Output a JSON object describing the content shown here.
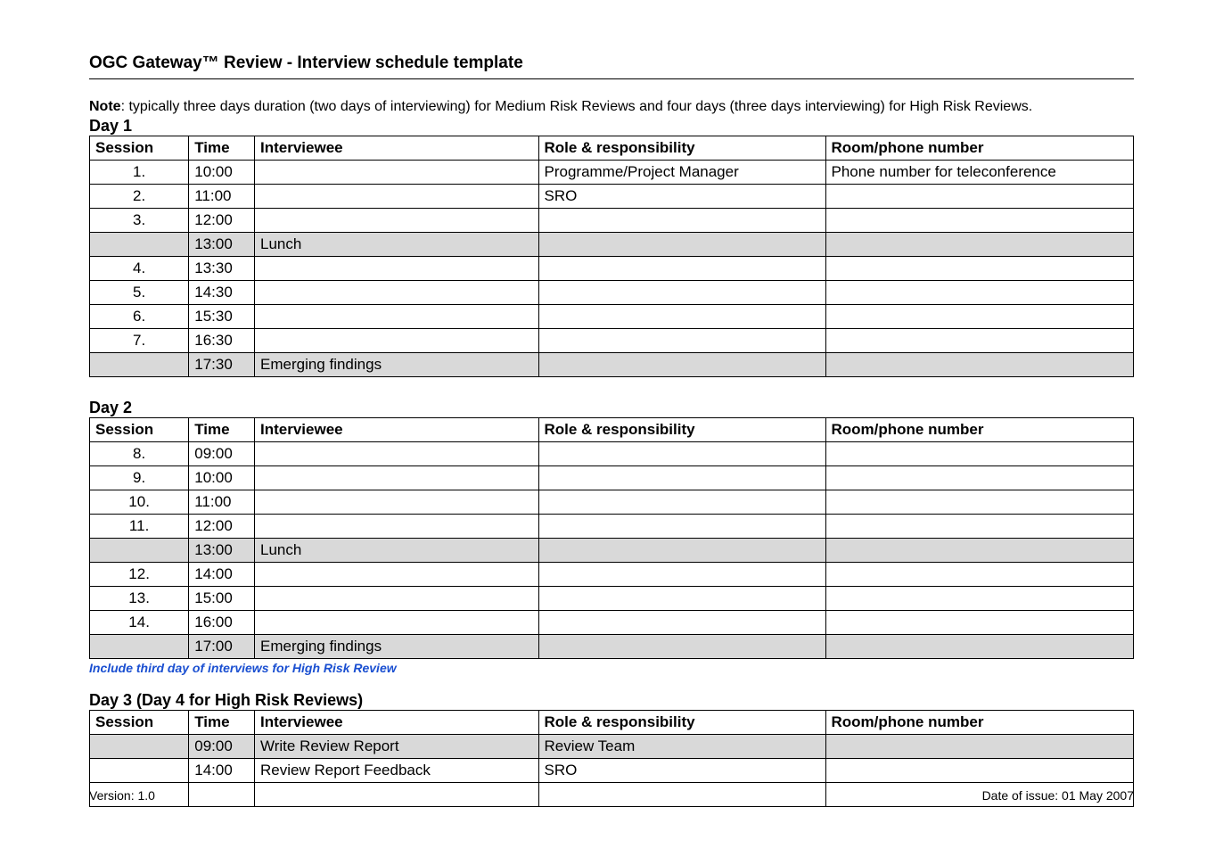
{
  "title": "OGC Gateway™ Review - Interview schedule template",
  "note_label": "Note",
  "note_text": ": typically three days duration (two days of interviewing) for Medium Risk Reviews and four days (three days interviewing) for High Risk Reviews.",
  "columns": {
    "session": "Session",
    "time": "Time",
    "interviewee": "Interviewee",
    "role": "Role & responsibility",
    "room": "Room/phone number"
  },
  "day1": {
    "heading": "Day 1",
    "rows": [
      {
        "session": "1.",
        "time": "10:00",
        "interviewee": "",
        "role": "Programme/Project Manager",
        "room": "Phone number for teleconference",
        "shaded": false
      },
      {
        "session": "2.",
        "time": "11:00",
        "interviewee": "",
        "role": "SRO",
        "room": "",
        "shaded": false
      },
      {
        "session": "3.",
        "time": "12:00",
        "interviewee": "",
        "role": "",
        "room": "",
        "shaded": false
      },
      {
        "session": "",
        "time": "13:00",
        "interviewee": "Lunch",
        "role": "",
        "room": "",
        "shaded": true
      },
      {
        "session": "4.",
        "time": "13:30",
        "interviewee": "",
        "role": "",
        "room": "",
        "shaded": false
      },
      {
        "session": "5.",
        "time": "14:30",
        "interviewee": "",
        "role": "",
        "room": "",
        "shaded": false
      },
      {
        "session": "6.",
        "time": "15:30",
        "interviewee": "",
        "role": "",
        "room": "",
        "shaded": false
      },
      {
        "session": "7.",
        "time": "16:30",
        "interviewee": "",
        "role": "",
        "room": "",
        "shaded": false
      },
      {
        "session": "",
        "time": "17:30",
        "interviewee": "Emerging findings",
        "role": "",
        "room": "",
        "shaded": true
      }
    ]
  },
  "day2": {
    "heading": "Day 2",
    "rows": [
      {
        "session": "8.",
        "time": "09:00",
        "interviewee": "",
        "role": "",
        "room": "",
        "shaded": false
      },
      {
        "session": "9.",
        "time": "10:00",
        "interviewee": "",
        "role": "",
        "room": "",
        "shaded": false
      },
      {
        "session": "10.",
        "time": "11:00",
        "interviewee": "",
        "role": "",
        "room": "",
        "shaded": false
      },
      {
        "session": "11.",
        "time": "12:00",
        "interviewee": "",
        "role": "",
        "room": "",
        "shaded": false
      },
      {
        "session": "",
        "time": "13:00",
        "interviewee": "Lunch",
        "role": "",
        "room": "",
        "shaded": true
      },
      {
        "session": "12.",
        "time": "14:00",
        "interviewee": "",
        "role": "",
        "room": "",
        "shaded": false
      },
      {
        "session": "13.",
        "time": "15:00",
        "interviewee": "",
        "role": "",
        "room": "",
        "shaded": false
      },
      {
        "session": "14.",
        "time": "16:00",
        "interviewee": "",
        "role": "",
        "room": "",
        "shaded": false
      },
      {
        "session": "",
        "time": "17:00",
        "interviewee": "Emerging findings",
        "role": "",
        "room": "",
        "shaded": true
      }
    ],
    "footnote": "Include third day of interviews for High Risk Review"
  },
  "day3": {
    "heading": "Day 3 (Day 4 for High Risk Reviews)",
    "rows": [
      {
        "session": "",
        "time": "09:00",
        "interviewee": "Write Review Report",
        "role": "Review Team",
        "room": "",
        "shaded": true
      },
      {
        "session": "",
        "time": "14:00",
        "interviewee": "Review Report Feedback",
        "role": "SRO",
        "room": "",
        "shaded": false
      },
      {
        "session": "",
        "time": "",
        "interviewee": "",
        "role": "",
        "room": "",
        "shaded": false
      }
    ]
  },
  "footer": {
    "version": "Version: 1.0",
    "date": "Date of issue: 01 May 2007"
  }
}
